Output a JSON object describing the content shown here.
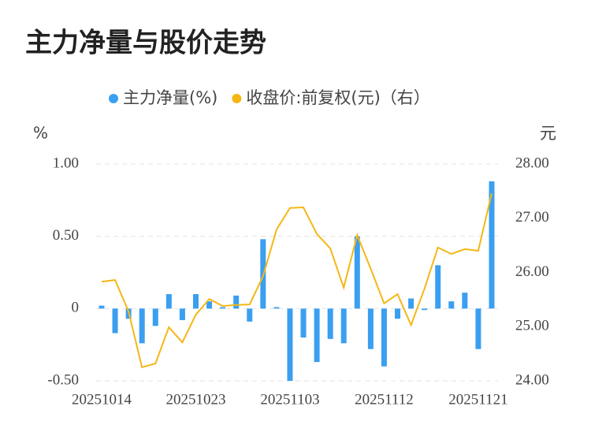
{
  "chart_data": {
    "type": "bar-line",
    "title": "主力净量与股价走势",
    "y_label": "%",
    "y2_label": "元",
    "categories": [
      "20251014",
      null,
      null,
      null,
      null,
      null,
      null,
      "20251023",
      null,
      null,
      null,
      null,
      null,
      null,
      "20251103",
      null,
      null,
      null,
      null,
      null,
      null,
      "20251112",
      null,
      null,
      null,
      null,
      null,
      null,
      "20251121",
      null
    ],
    "series": [
      {
        "name": "主力净量(%)",
        "type": "bar",
        "color": "#3a9ff0",
        "values": [
          0.02,
          -0.17,
          -0.07,
          -0.24,
          -0.12,
          0.1,
          -0.08,
          0.1,
          0.05,
          0.01,
          0.09,
          -0.09,
          0.48,
          0.01,
          -0.5,
          -0.2,
          -0.37,
          -0.21,
          -0.24,
          0.5,
          -0.28,
          -0.4,
          -0.07,
          0.07,
          -0.01,
          0.3,
          0.05,
          0.11,
          -0.28,
          0.88
        ]
      },
      {
        "name": "收盘价:前复权(元)（右）",
        "type": "line",
        "axis": "y2",
        "color": "#f5b716",
        "values": [
          25.83,
          25.86,
          25.28,
          24.25,
          24.32,
          24.99,
          24.71,
          25.22,
          25.51,
          25.38,
          25.4,
          25.41,
          25.93,
          26.79,
          27.19,
          27.2,
          26.71,
          26.44,
          25.72,
          26.69,
          26.07,
          25.43,
          25.6,
          25.03,
          25.7,
          26.46,
          26.34,
          26.43,
          26.4,
          27.46
        ]
      }
    ],
    "ylim": [
      -0.5,
      1.0
    ],
    "yticks": [
      {
        "value": 1.0,
        "label": "1.00"
      },
      {
        "value": 0.5,
        "label": "0.50"
      },
      0,
      {
        "value": -0.5,
        "label": "-0.50"
      }
    ],
    "y2lim": [
      24,
      28
    ],
    "y2ticks": [
      {
        "value": 28,
        "label": "28.00"
      },
      {
        "value": 27,
        "label": "27.00"
      },
      {
        "value": 26,
        "label": "26.00"
      },
      {
        "value": 25,
        "label": "25.00"
      },
      {
        "value": 24,
        "label": "24.00"
      }
    ],
    "grid": true,
    "legend": "top"
  }
}
